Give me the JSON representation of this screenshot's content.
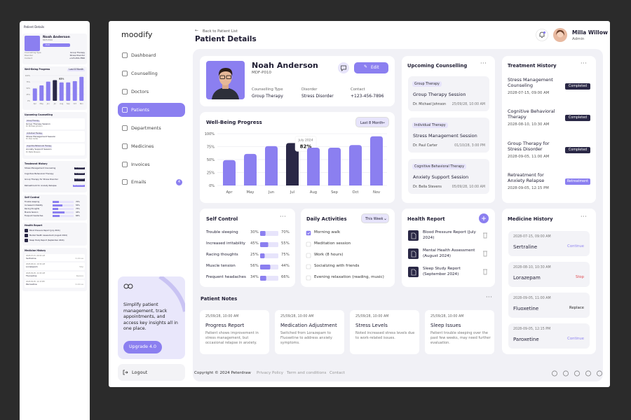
{
  "sidebar": {
    "logo": "moodify",
    "nav": [
      "Dashboard",
      "Counselling",
      "Doctors",
      "Patients",
      "Departments",
      "Medicines",
      "Invoices",
      "Emails"
    ],
    "emails_badge": "4",
    "promo": {
      "text": "Simplify patient management, track appointments, and access key insights all in one place.",
      "button": "Upgrade 4.0"
    },
    "logout": "Logout"
  },
  "header": {
    "back": "Back to Patient List",
    "title": "Patient Details",
    "user": {
      "name": "Milla Willow",
      "role": "Admin"
    }
  },
  "patient": {
    "name": "Noah Anderson",
    "id": "MDF-P010",
    "edit": "Edit",
    "fields": [
      {
        "label": "Counselling Type",
        "value": "Group Therapy"
      },
      {
        "label": "Disorder",
        "value": "Stress Disorder"
      },
      {
        "label": "Contact",
        "value": "+123-456-7896"
      }
    ]
  },
  "chart_data": {
    "type": "bar",
    "title": "Well-Being Progress",
    "filter": "Last 8 Month",
    "categories": [
      "Apr",
      "May",
      "Jun",
      "Jul",
      "Aug",
      "Sep",
      "Oct",
      "Nov"
    ],
    "values": [
      49,
      61,
      76,
      82,
      73,
      73,
      78,
      95
    ],
    "value_labels": [
      null,
      null,
      null,
      "82%",
      null,
      null,
      null,
      null
    ],
    "tooltip_title": "July 2024",
    "color": "#8b7ff0",
    "highlight_color": "#2a2846",
    "ylim": [
      0,
      100
    ],
    "yticks": [
      {
        "value": 0,
        "label": "0%"
      },
      {
        "value": 25,
        "label": "25%"
      },
      {
        "value": 50,
        "label": "50%"
      },
      {
        "value": 75,
        "label": "75%"
      },
      {
        "value": 100,
        "label": "100%"
      }
    ],
    "grid": true
  },
  "counselling": {
    "title": "Upcoming Counselling",
    "items": [
      {
        "tag": "Group Therapy",
        "title": "Group Therapy Session",
        "doctor": "Dr. Michael Johnson",
        "date": "25/09/28, 10:00 AM"
      },
      {
        "tag": "Individual Therapy",
        "title": "Stress Management Session",
        "doctor": "Dr. Paul Carter",
        "date": "01/10/28, 3:00 PM"
      },
      {
        "tag": "Cognitive Behavioral Therapy",
        "title": "Anxiety Support Session",
        "doctor": "Dr. Bella Stevens",
        "date": "05/09/28, 10:00 AM"
      }
    ]
  },
  "treatment": {
    "title": "Treatment History",
    "items": [
      {
        "name": "Stress Management Counseling",
        "date": "2028-07-15, 09:00 AM",
        "status": "Completed"
      },
      {
        "name": "Cognitive Behavioral Therapy",
        "date": "2028-08-10, 10:30 AM",
        "status": "Completed"
      },
      {
        "name": "Group Therapy for Stress Disorder",
        "date": "2028-09-05, 11:00 AM",
        "status": "Completed"
      },
      {
        "name": "Retreatment for Anxiety Relapse",
        "date": "2028-09-05, 12:15 PM",
        "status": "Retreatment"
      }
    ]
  },
  "self_control": {
    "title": "Self Control",
    "items": [
      {
        "name": "Trouble sleeping",
        "values": [
          30,
          70
        ],
        "value_labels": [
          "30%",
          "70%"
        ]
      },
      {
        "name": "Increased irritability",
        "values": [
          45,
          55
        ],
        "value_labels": [
          "45%",
          "55%"
        ]
      },
      {
        "name": "Racing thoughts",
        "values": [
          25,
          75
        ],
        "value_labels": [
          "25%",
          "75%"
        ]
      },
      {
        "name": "Muscle tension",
        "values": [
          56,
          44
        ],
        "value_labels": [
          "56%",
          "44%"
        ]
      },
      {
        "name": "Frequent headaches",
        "values": [
          34,
          66
        ],
        "value_labels": [
          "34%",
          "66%"
        ]
      }
    ]
  },
  "activities": {
    "title": "Daily Activities",
    "filter": "This Week",
    "items": [
      {
        "label": "Morning walk",
        "done": true
      },
      {
        "label": "Meditation session",
        "done": false
      },
      {
        "label": "Work (8 hours)",
        "done": false
      },
      {
        "label": "Socializing with friends",
        "done": false
      },
      {
        "label": "Evening relaxation (reading, music)",
        "done": false
      }
    ]
  },
  "health_report": {
    "title": "Health Report",
    "items": [
      "Blood Pressure Report (July 2024)",
      "Mental Health Assessment (August 2024)",
      "Sleep Study Report (September 2024)"
    ]
  },
  "medicine": {
    "title": "Medicine History",
    "items": [
      {
        "date": "2028-07-15, 09:00 AM",
        "name": "Sertraline",
        "action": "Continue"
      },
      {
        "date": "2028-08-10, 10:30 AM",
        "name": "Lorazepam",
        "action": "Stop"
      },
      {
        "date": "2028-09-05, 11:00 AM",
        "name": "Fluoxetine",
        "action": "Replace"
      },
      {
        "date": "2028-09-05, 12:15 PM",
        "name": "Paroxetine",
        "action": "Continue"
      }
    ]
  },
  "notes": {
    "title": "Patient Notes",
    "items": [
      {
        "date": "25/09/28, 10:00 AM",
        "title": "Progress Report",
        "text": "Patient shows improvement in stress management, but occasional relapse in anxiety."
      },
      {
        "date": "25/09/28, 10:00 AM",
        "title": "Medication Adjustment",
        "text": "Switched from Lorazepam to Fluoxetine to address anxiety symptoms."
      },
      {
        "date": "25/09/28, 10:00 AM",
        "title": "Stress Levels",
        "text": "Noted increased stress levels due to work-related issues."
      },
      {
        "date": "25/09/28, 10:00 AM",
        "title": "Sleep Issues",
        "text": "Patient trouble sleeping over the past few weeks, may need further evaluation."
      }
    ]
  },
  "footer": {
    "copyright": "Copyright © 2024 Peterdraw",
    "links": [
      "Privacy Policy",
      "Term and conditions",
      "Contact"
    ]
  }
}
